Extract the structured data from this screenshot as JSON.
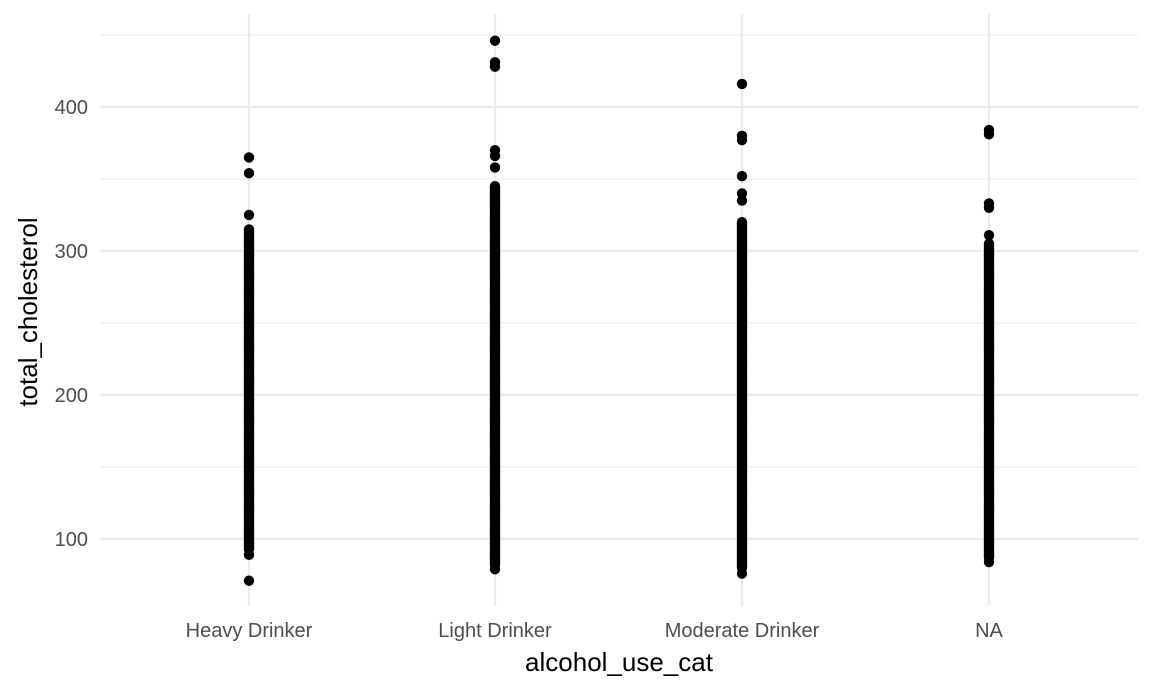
{
  "chart_data": {
    "type": "scatter",
    "title": "",
    "xlabel": "alcohol_use_cat",
    "ylabel": "total_cholesterol",
    "categories": [
      "Heavy Drinker",
      "Light Drinker",
      "Moderate Drinker",
      "NA"
    ],
    "ylim": [
      55,
      450
    ],
    "yticks": [
      100,
      200,
      300,
      400
    ],
    "grid": true,
    "legend": "none",
    "point_color": "#000000",
    "series": [
      {
        "category": "Heavy Drinker",
        "range": [
          93,
          315
        ],
        "outliers": [
          71,
          89,
          325,
          354,
          365
        ]
      },
      {
        "category": "Light Drinker",
        "range": [
          82,
          345
        ],
        "outliers": [
          79,
          358,
          366,
          370,
          428,
          431,
          446
        ]
      },
      {
        "category": "Moderate Drinker",
        "range": [
          80,
          320
        ],
        "outliers": [
          76,
          335,
          340,
          352,
          377,
          380,
          416
        ]
      },
      {
        "category": "NA",
        "range": [
          87,
          305
        ],
        "outliers": [
          84,
          311,
          330,
          333,
          381,
          384
        ]
      }
    ]
  }
}
